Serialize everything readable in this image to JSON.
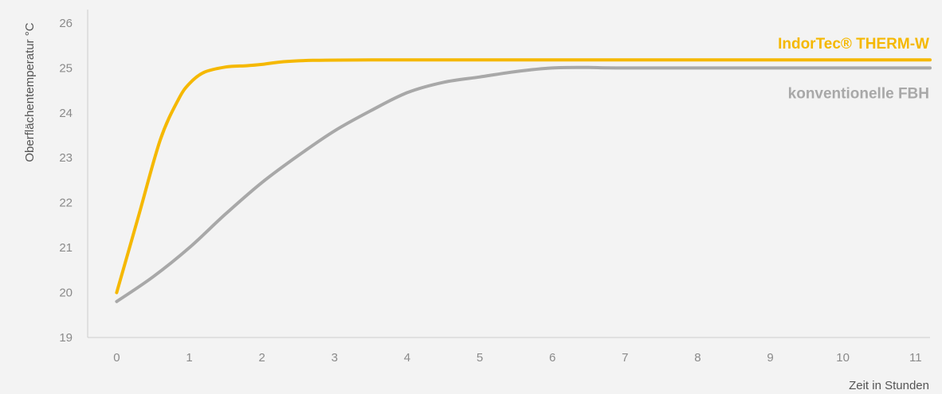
{
  "chart_data": {
    "type": "line",
    "title": "",
    "xlabel": "Zeit in Stunden",
    "ylabel": "Oberflächentemperatur °C",
    "xlim": [
      -0.4,
      11.2
    ],
    "ylim": [
      19,
      26.3
    ],
    "x_ticks": [
      "0",
      "1",
      "2",
      "3",
      "4",
      "5",
      "6",
      "7",
      "8",
      "9",
      "10",
      "11"
    ],
    "y_ticks": [
      "19",
      "20",
      "21",
      "22",
      "23",
      "24",
      "25",
      "26"
    ],
    "grid": false,
    "series": [
      {
        "name": "IndorTec® THERM-W",
        "color": "#f5b800",
        "points": [
          [
            0,
            20.0
          ],
          [
            0.3,
            21.7
          ],
          [
            0.6,
            23.4
          ],
          [
            0.85,
            24.3
          ],
          [
            1.0,
            24.65
          ],
          [
            1.2,
            24.9
          ],
          [
            1.5,
            25.02
          ],
          [
            1.8,
            25.05
          ],
          [
            2.0,
            25.08
          ],
          [
            2.3,
            25.14
          ],
          [
            2.7,
            25.17
          ],
          [
            3.5,
            25.18
          ],
          [
            5,
            25.18
          ],
          [
            7,
            25.18
          ],
          [
            9,
            25.18
          ],
          [
            11.2,
            25.18
          ]
        ]
      },
      {
        "name": "konventionelle FBH",
        "color": "#a8a8a8",
        "points": [
          [
            0,
            19.8
          ],
          [
            0.5,
            20.35
          ],
          [
            1.0,
            21.0
          ],
          [
            1.5,
            21.75
          ],
          [
            2.0,
            22.45
          ],
          [
            2.5,
            23.05
          ],
          [
            3.0,
            23.6
          ],
          [
            3.5,
            24.05
          ],
          [
            4.0,
            24.45
          ],
          [
            4.5,
            24.68
          ],
          [
            5.0,
            24.8
          ],
          [
            5.5,
            24.92
          ],
          [
            6.0,
            25.0
          ],
          [
            6.5,
            25.01
          ],
          [
            7,
            25.0
          ],
          [
            9,
            25.0
          ],
          [
            11.2,
            25.0
          ]
        ]
      }
    ]
  }
}
